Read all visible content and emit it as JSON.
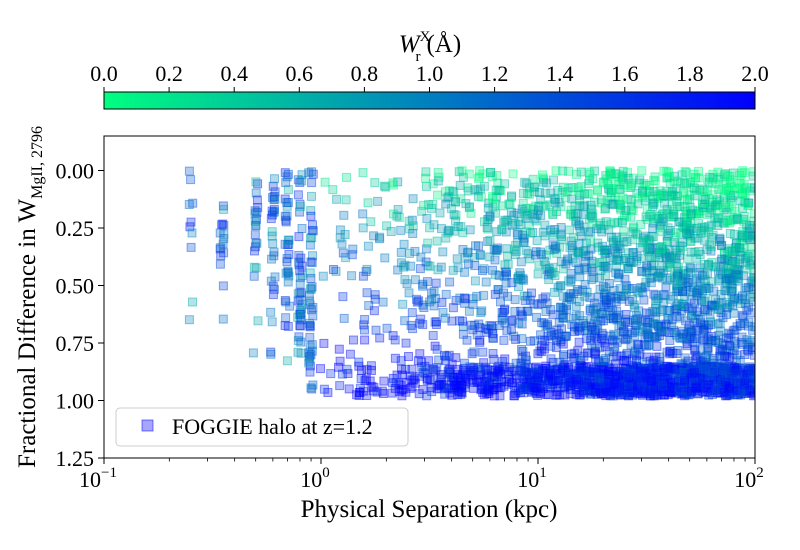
{
  "chart_data": {
    "type": "scatter",
    "title": "",
    "xlabel": "Physical Separation (kpc)",
    "ylabel": "Fractional Difference in W",
    "ylabel_subscript": "MgII, 2796",
    "xscale": "log",
    "xlim": [
      0.1,
      100
    ],
    "ylim": [
      1.25,
      -0.15
    ],
    "y_inverted": true,
    "x_ticks": [
      {
        "value": 0.1,
        "base": "10",
        "exp": "−1"
      },
      {
        "value": 1,
        "base": "10",
        "exp": "0"
      },
      {
        "value": 10,
        "base": "10",
        "exp": "1"
      },
      {
        "value": 100,
        "base": "10",
        "exp": "2"
      }
    ],
    "y_ticks": [
      {
        "value": 0.0,
        "label": "0.00"
      },
      {
        "value": 0.25,
        "label": "0.25"
      },
      {
        "value": 0.5,
        "label": "0.50"
      },
      {
        "value": 0.75,
        "label": "0.75"
      },
      {
        "value": 1.0,
        "label": "1.00"
      },
      {
        "value": 1.25,
        "label": "1.25"
      }
    ],
    "colorbar": {
      "label": "W",
      "label_subscript": "r",
      "label_superscript": "X",
      "label_unit": "(Å)",
      "range": [
        0.0,
        2.0
      ],
      "ticks": [
        "0.0",
        "0.2",
        "0.4",
        "0.6",
        "0.8",
        "1.0",
        "1.2",
        "1.4",
        "1.6",
        "1.8",
        "2.0"
      ],
      "color_low": "#00ff80",
      "color_high": "#0000ff"
    },
    "marker_color": "#0000ff",
    "legend": {
      "label": "FOGGIE halo at z=1.2",
      "position": "lower-left"
    },
    "discrete_columns_kpc": [
      0.25,
      0.35,
      0.5,
      0.6,
      0.7,
      0.8,
      0.9
    ],
    "series": [
      {
        "name": "FOGGIE halo at z=1.2",
        "marker": "square",
        "alpha": 0.3,
        "description_x_range": [
          0.25,
          100
        ],
        "description_y_range": [
          0.0,
          0.98
        ]
      }
    ]
  }
}
